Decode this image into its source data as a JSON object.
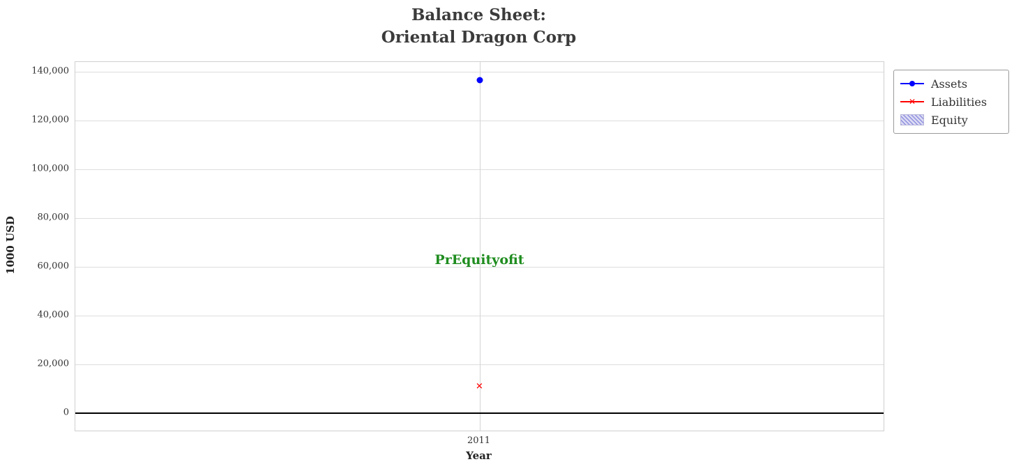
{
  "title": {
    "line1": "Balance Sheet:",
    "line2": "Oriental Dragon Corp"
  },
  "chart_data": {
    "type": "scatter",
    "title": "Balance Sheet: Oriental Dragon Corp",
    "xlabel": "Year",
    "ylabel": "1000 USD",
    "x_categories": [
      "2011"
    ],
    "series": [
      {
        "name": "Assets",
        "marker": "circle",
        "color": "#0000ff",
        "values": [
          136500
        ]
      },
      {
        "name": "Liabilities",
        "marker": "x",
        "color": "#ff0000",
        "values": [
          11000
        ]
      },
      {
        "name": "Equity",
        "marker": "patch",
        "color": "#d9d9f3",
        "hatch_color": "#6e6ed7",
        "values": []
      }
    ],
    "ylim": [
      -7000,
      144000
    ],
    "yticks": [
      0,
      20000,
      40000,
      60000,
      80000,
      100000,
      120000,
      140000
    ],
    "ytick_labels": [
      "0",
      "20,000",
      "40,000",
      "60,000",
      "80,000",
      "100,000",
      "120,000",
      "140,000"
    ],
    "grid": true,
    "legend_position": "outside-upper-right",
    "zero_line_y": 0,
    "annotation": {
      "text": "PrEquityofit",
      "color": "#1e8c1e",
      "x": "2011",
      "y": 63000
    }
  }
}
